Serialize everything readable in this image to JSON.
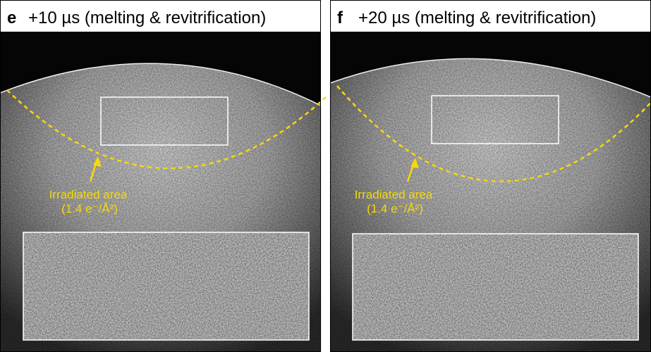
{
  "panels": [
    {
      "label": "e",
      "title": "+10 µs (melting & revitrification)",
      "annotation": "Irradiated area",
      "dose": "(1.4 e⁻/Å²)"
    },
    {
      "label": "f",
      "title": "+20 µs (melting & revitrification)",
      "annotation": "Irradiated area",
      "dose": "(1.4 e⁻/Å²)"
    }
  ]
}
